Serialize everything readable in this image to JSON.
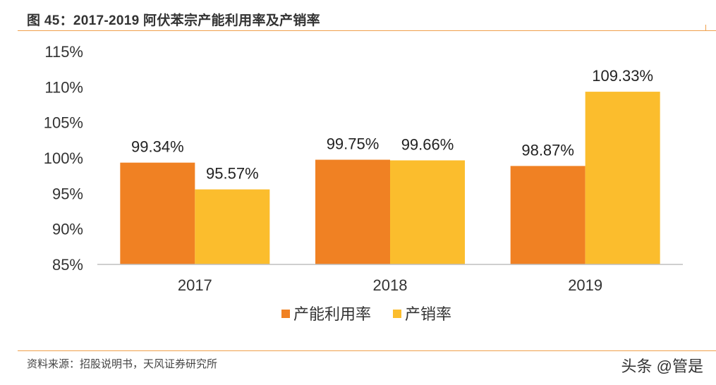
{
  "header": {
    "title": "图 45：2017-2019 阿伏苯宗产能利用率及产销率"
  },
  "footer": {
    "source": "资料来源：招股说明书，天风证券研究所",
    "watermark": "头条 @管是"
  },
  "colors": {
    "accent_rule": "#f0a04b",
    "series_1": "#f08123",
    "series_2": "#fbbd2d"
  },
  "chart_data": {
    "type": "bar",
    "categories": [
      "2017",
      "2018",
      "2019"
    ],
    "series": [
      {
        "name": "产能利用率",
        "values": [
          99.34,
          99.75,
          98.87
        ],
        "labels": [
          "99.34%",
          "99.75%",
          "98.87%"
        ],
        "color": "#f08123"
      },
      {
        "name": "产销率",
        "values": [
          95.57,
          99.66,
          109.33
        ],
        "labels": [
          "95.57%",
          "99.66%",
          "109.33%"
        ],
        "color": "#fbbd2d"
      }
    ],
    "ylim": [
      85,
      115
    ],
    "yticks": [
      85,
      90,
      95,
      100,
      105,
      110,
      115
    ],
    "ytick_labels": [
      "85%",
      "90%",
      "95%",
      "100%",
      "105%",
      "110%",
      "115%"
    ],
    "grid": false,
    "legend_position": "bottom-center",
    "xlabel": "",
    "ylabel": ""
  }
}
